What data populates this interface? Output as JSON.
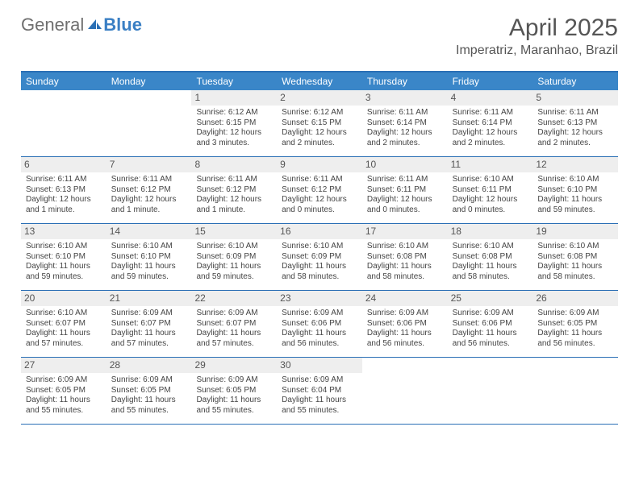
{
  "brand": {
    "part1": "General",
    "part2": "Blue"
  },
  "title": "April 2025",
  "location": "Imperatriz, Maranhao, Brazil",
  "colors": {
    "header_bar": "#3a86c8",
    "header_border": "#2a6fb5",
    "day_num_bg": "#eeeeee",
    "text": "#444444",
    "title_text": "#555555",
    "logo_gray": "#6f6f6f",
    "logo_blue": "#3a7fc4"
  },
  "day_names": [
    "Sunday",
    "Monday",
    "Tuesday",
    "Wednesday",
    "Thursday",
    "Friday",
    "Saturday"
  ],
  "weeks": [
    [
      {
        "n": "",
        "sr": "",
        "ss": "",
        "dl": ""
      },
      {
        "n": "",
        "sr": "",
        "ss": "",
        "dl": ""
      },
      {
        "n": "1",
        "sr": "Sunrise: 6:12 AM",
        "ss": "Sunset: 6:15 PM",
        "dl": "Daylight: 12 hours and 3 minutes."
      },
      {
        "n": "2",
        "sr": "Sunrise: 6:12 AM",
        "ss": "Sunset: 6:15 PM",
        "dl": "Daylight: 12 hours and 2 minutes."
      },
      {
        "n": "3",
        "sr": "Sunrise: 6:11 AM",
        "ss": "Sunset: 6:14 PM",
        "dl": "Daylight: 12 hours and 2 minutes."
      },
      {
        "n": "4",
        "sr": "Sunrise: 6:11 AM",
        "ss": "Sunset: 6:14 PM",
        "dl": "Daylight: 12 hours and 2 minutes."
      },
      {
        "n": "5",
        "sr": "Sunrise: 6:11 AM",
        "ss": "Sunset: 6:13 PM",
        "dl": "Daylight: 12 hours and 2 minutes."
      }
    ],
    [
      {
        "n": "6",
        "sr": "Sunrise: 6:11 AM",
        "ss": "Sunset: 6:13 PM",
        "dl": "Daylight: 12 hours and 1 minute."
      },
      {
        "n": "7",
        "sr": "Sunrise: 6:11 AM",
        "ss": "Sunset: 6:12 PM",
        "dl": "Daylight: 12 hours and 1 minute."
      },
      {
        "n": "8",
        "sr": "Sunrise: 6:11 AM",
        "ss": "Sunset: 6:12 PM",
        "dl": "Daylight: 12 hours and 1 minute."
      },
      {
        "n": "9",
        "sr": "Sunrise: 6:11 AM",
        "ss": "Sunset: 6:12 PM",
        "dl": "Daylight: 12 hours and 0 minutes."
      },
      {
        "n": "10",
        "sr": "Sunrise: 6:11 AM",
        "ss": "Sunset: 6:11 PM",
        "dl": "Daylight: 12 hours and 0 minutes."
      },
      {
        "n": "11",
        "sr": "Sunrise: 6:10 AM",
        "ss": "Sunset: 6:11 PM",
        "dl": "Daylight: 12 hours and 0 minutes."
      },
      {
        "n": "12",
        "sr": "Sunrise: 6:10 AM",
        "ss": "Sunset: 6:10 PM",
        "dl": "Daylight: 11 hours and 59 minutes."
      }
    ],
    [
      {
        "n": "13",
        "sr": "Sunrise: 6:10 AM",
        "ss": "Sunset: 6:10 PM",
        "dl": "Daylight: 11 hours and 59 minutes."
      },
      {
        "n": "14",
        "sr": "Sunrise: 6:10 AM",
        "ss": "Sunset: 6:10 PM",
        "dl": "Daylight: 11 hours and 59 minutes."
      },
      {
        "n": "15",
        "sr": "Sunrise: 6:10 AM",
        "ss": "Sunset: 6:09 PM",
        "dl": "Daylight: 11 hours and 59 minutes."
      },
      {
        "n": "16",
        "sr": "Sunrise: 6:10 AM",
        "ss": "Sunset: 6:09 PM",
        "dl": "Daylight: 11 hours and 58 minutes."
      },
      {
        "n": "17",
        "sr": "Sunrise: 6:10 AM",
        "ss": "Sunset: 6:08 PM",
        "dl": "Daylight: 11 hours and 58 minutes."
      },
      {
        "n": "18",
        "sr": "Sunrise: 6:10 AM",
        "ss": "Sunset: 6:08 PM",
        "dl": "Daylight: 11 hours and 58 minutes."
      },
      {
        "n": "19",
        "sr": "Sunrise: 6:10 AM",
        "ss": "Sunset: 6:08 PM",
        "dl": "Daylight: 11 hours and 58 minutes."
      }
    ],
    [
      {
        "n": "20",
        "sr": "Sunrise: 6:10 AM",
        "ss": "Sunset: 6:07 PM",
        "dl": "Daylight: 11 hours and 57 minutes."
      },
      {
        "n": "21",
        "sr": "Sunrise: 6:09 AM",
        "ss": "Sunset: 6:07 PM",
        "dl": "Daylight: 11 hours and 57 minutes."
      },
      {
        "n": "22",
        "sr": "Sunrise: 6:09 AM",
        "ss": "Sunset: 6:07 PM",
        "dl": "Daylight: 11 hours and 57 minutes."
      },
      {
        "n": "23",
        "sr": "Sunrise: 6:09 AM",
        "ss": "Sunset: 6:06 PM",
        "dl": "Daylight: 11 hours and 56 minutes."
      },
      {
        "n": "24",
        "sr": "Sunrise: 6:09 AM",
        "ss": "Sunset: 6:06 PM",
        "dl": "Daylight: 11 hours and 56 minutes."
      },
      {
        "n": "25",
        "sr": "Sunrise: 6:09 AM",
        "ss": "Sunset: 6:06 PM",
        "dl": "Daylight: 11 hours and 56 minutes."
      },
      {
        "n": "26",
        "sr": "Sunrise: 6:09 AM",
        "ss": "Sunset: 6:05 PM",
        "dl": "Daylight: 11 hours and 56 minutes."
      }
    ],
    [
      {
        "n": "27",
        "sr": "Sunrise: 6:09 AM",
        "ss": "Sunset: 6:05 PM",
        "dl": "Daylight: 11 hours and 55 minutes."
      },
      {
        "n": "28",
        "sr": "Sunrise: 6:09 AM",
        "ss": "Sunset: 6:05 PM",
        "dl": "Daylight: 11 hours and 55 minutes."
      },
      {
        "n": "29",
        "sr": "Sunrise: 6:09 AM",
        "ss": "Sunset: 6:05 PM",
        "dl": "Daylight: 11 hours and 55 minutes."
      },
      {
        "n": "30",
        "sr": "Sunrise: 6:09 AM",
        "ss": "Sunset: 6:04 PM",
        "dl": "Daylight: 11 hours and 55 minutes."
      },
      {
        "n": "",
        "sr": "",
        "ss": "",
        "dl": ""
      },
      {
        "n": "",
        "sr": "",
        "ss": "",
        "dl": ""
      },
      {
        "n": "",
        "sr": "",
        "ss": "",
        "dl": ""
      }
    ]
  ]
}
